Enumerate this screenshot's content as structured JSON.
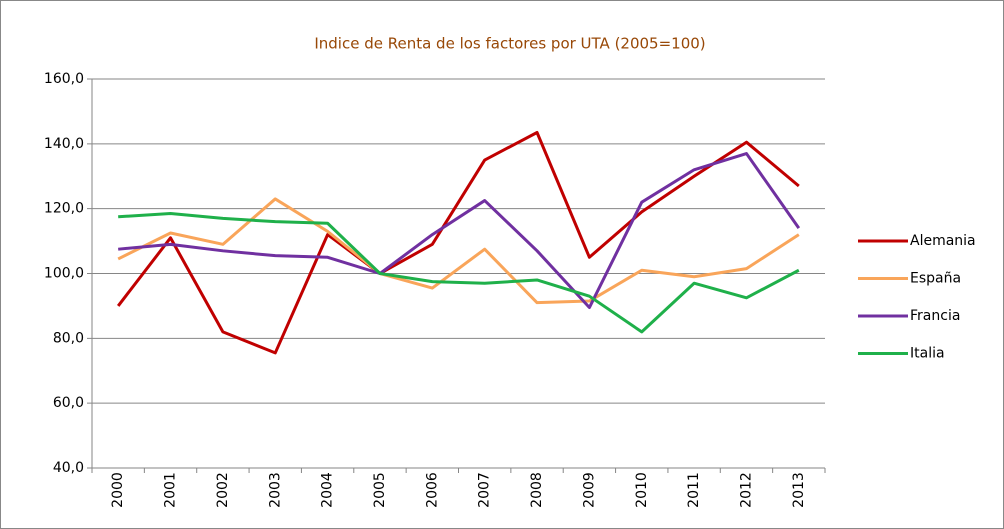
{
  "chart_data": {
    "type": "line",
    "title": "Indice de Renta de los factores por UTA (2005=100)",
    "categories": [
      "2000",
      "2001",
      "2002",
      "2003",
      "2004",
      "2005",
      "2006",
      "2007",
      "2008",
      "2009",
      "2010",
      "2011",
      "2012",
      "2013"
    ],
    "series": [
      {
        "name": "Alemania",
        "color": "#c00000",
        "values": [
          90,
          111,
          82,
          75.5,
          112,
          100,
          109,
          135,
          143.5,
          105,
          119,
          130,
          140.5,
          127
        ]
      },
      {
        "name": "España",
        "color": "#f9a55a",
        "values": [
          104.5,
          112.5,
          109,
          123,
          113,
          100,
          95.5,
          107.5,
          91,
          91.5,
          101,
          99,
          101.5,
          112
        ]
      },
      {
        "name": "Francia",
        "color": "#7030a0",
        "values": [
          107.5,
          109,
          107,
          105.5,
          105,
          100,
          112,
          122.5,
          107,
          89.5,
          122,
          132,
          137,
          114
        ]
      },
      {
        "name": "Italia",
        "color": "#1fb04a",
        "values": [
          117.5,
          118.5,
          117,
          116,
          115.5,
          100,
          97.5,
          97,
          98,
          93,
          82,
          97,
          92.5,
          101
        ]
      }
    ],
    "ylim": [
      40,
      160
    ],
    "yticks": [
      {
        "value": 40,
        "label": "40,0"
      },
      {
        "value": 60,
        "label": "60,0"
      },
      {
        "value": 80,
        "label": "80,0"
      },
      {
        "value": 100,
        "label": "100,0"
      },
      {
        "value": 120,
        "label": "120,0"
      },
      {
        "value": 140,
        "label": "140,0"
      },
      {
        "value": 160,
        "label": "160,0"
      }
    ],
    "grid": true,
    "legend": "right"
  }
}
